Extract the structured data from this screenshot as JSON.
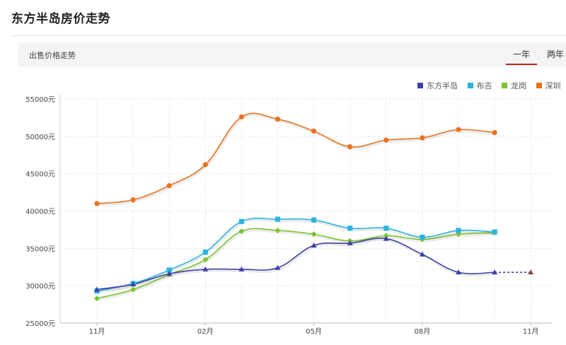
{
  "page": {
    "title": "东方半岛房价走势"
  },
  "tabs": {
    "section_label": "出售价格走势",
    "items": [
      {
        "label": "一年",
        "active": true
      },
      {
        "label": "两年",
        "active": false
      }
    ]
  },
  "colors": {
    "东方半岛": "#3e3fa5",
    "布吉": "#2cb3e0",
    "龙岗": "#7cc42f",
    "深圳": "#e8731c"
  },
  "chart_data": {
    "type": "line",
    "x_ticks": [
      "11月",
      "02月",
      "05月",
      "08月",
      "11月"
    ],
    "y_ticks": [
      "25000元",
      "30000元",
      "35000元",
      "40000元",
      "45000元",
      "50000元",
      "55000元"
    ],
    "ylim": [
      25000,
      55000
    ],
    "grid": true,
    "legend_position": "top-right",
    "series": [
      {
        "name": "东方半岛",
        "marker": "triangle",
        "values": [
          29500,
          30200,
          31600,
          32200,
          32200,
          32400,
          35400,
          35700,
          36300,
          34200,
          31800,
          31800
        ],
        "forecast": [
          31800,
          31800
        ]
      },
      {
        "name": "布吉",
        "marker": "square",
        "values": [
          29300,
          30300,
          32100,
          34500,
          38600,
          38900,
          38800,
          37700,
          37700,
          36500,
          37400,
          37200
        ]
      },
      {
        "name": "龙岗",
        "marker": "diamond",
        "values": [
          28300,
          29500,
          31500,
          33500,
          37300,
          37400,
          36900,
          36000,
          36700,
          36200,
          36900,
          37100
        ]
      },
      {
        "name": "深圳",
        "marker": "circle",
        "values": [
          41000,
          41500,
          43400,
          46200,
          52600,
          52300,
          50700,
          48600,
          49500,
          49800,
          50900,
          50500
        ]
      }
    ]
  }
}
